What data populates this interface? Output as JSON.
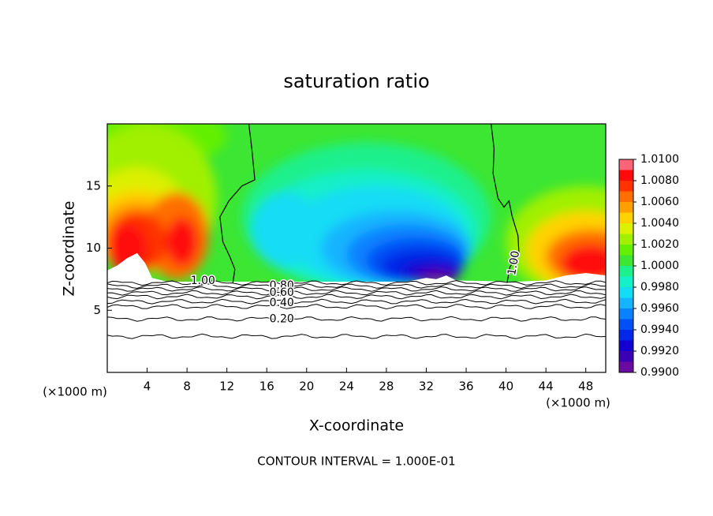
{
  "chart_data": {
    "type": "contour",
    "title": "saturation ratio",
    "xlabel": "X-coordinate",
    "ylabel": "Z-coordinate",
    "x_unit_label": "(×1000 m)",
    "xlim": [
      0,
      50
    ],
    "ylim": [
      0,
      20
    ],
    "xticks": [
      4,
      8,
      12,
      16,
      20,
      24,
      28,
      32,
      36,
      40,
      44,
      48
    ],
    "yticks": [
      5,
      10,
      15
    ],
    "colorbar": {
      "levels": [
        0.99,
        0.991,
        0.992,
        0.993,
        0.994,
        0.995,
        0.996,
        0.997,
        0.998,
        0.999,
        1.0,
        1.001,
        1.002,
        1.003,
        1.004,
        1.005,
        1.006,
        1.007,
        1.008,
        1.009,
        1.01
      ],
      "colors": [
        "#6a0aa0",
        "#3c00b4",
        "#1400d2",
        "#0028e6",
        "#0050f5",
        "#0a82ff",
        "#14b4ff",
        "#14dcf5",
        "#14f0c8",
        "#1ef08c",
        "#3ce632",
        "#64f000",
        "#a0f000",
        "#dcf000",
        "#ffd200",
        "#ffa000",
        "#ff6e00",
        "#ff3200",
        "#ff0a0a",
        "#ff6478"
      ],
      "ticks": [
        {
          "value": 0.99,
          "label": "0.9900"
        },
        {
          "value": 0.992,
          "label": "0.9920"
        },
        {
          "value": 0.994,
          "label": "0.9940"
        },
        {
          "value": 0.996,
          "label": "0.9960"
        },
        {
          "value": 0.998,
          "label": "0.9980"
        },
        {
          "value": 1.0,
          "label": "1.0000"
        },
        {
          "value": 1.002,
          "label": "1.0020"
        },
        {
          "value": 1.004,
          "label": "1.0040"
        },
        {
          "value": 1.006,
          "label": "1.0060"
        },
        {
          "value": 1.008,
          "label": "1.0080"
        },
        {
          "value": 1.01,
          "label": "1.0100"
        }
      ]
    },
    "contour_labels": [
      {
        "value": 1.0,
        "label": "1.00"
      },
      {
        "value": 0.8,
        "label": "0.80"
      },
      {
        "value": 0.6,
        "label": "0.60"
      },
      {
        "value": 0.4,
        "label": "0.40"
      },
      {
        "value": 0.2,
        "label": "0.20"
      },
      {
        "value": 1.0,
        "label": "1.00"
      }
    ],
    "footer": "CONTOUR INTERVAL = 1.000E-01"
  }
}
